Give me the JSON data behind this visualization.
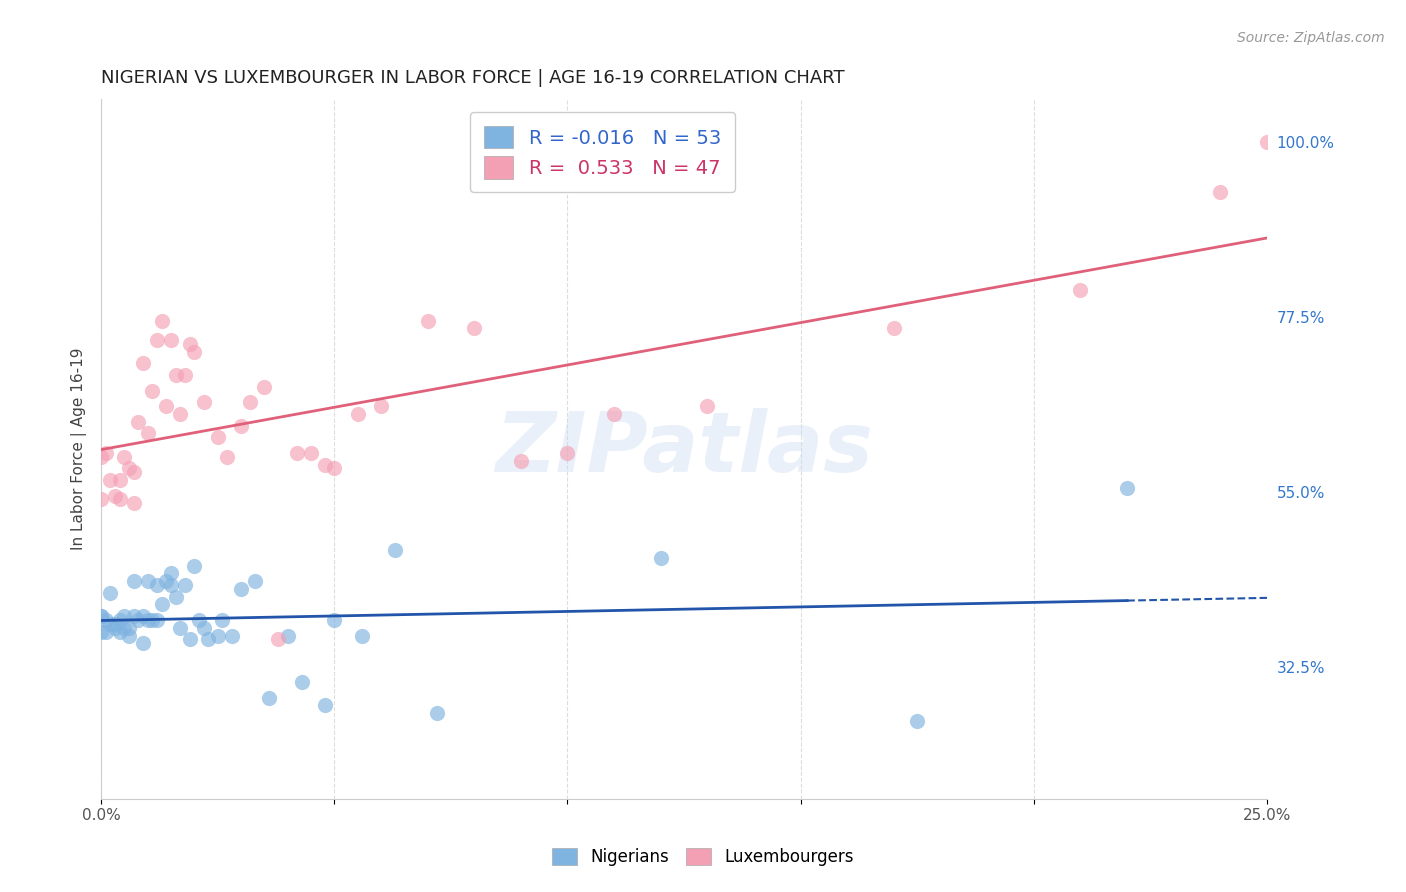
{
  "title": "NIGERIAN VS LUXEMBOURGER IN LABOR FORCE | AGE 16-19 CORRELATION CHART",
  "source_text": "Source: ZipAtlas.com",
  "ylabel": "In Labor Force | Age 16-19",
  "xlim": [
    0.0,
    0.25
  ],
  "ylim": [
    0.155,
    1.055
  ],
  "x_ticks": [
    0.0,
    0.05,
    0.1,
    0.15,
    0.2,
    0.25
  ],
  "x_tick_labels": [
    "0.0%",
    "",
    "",
    "",
    "",
    "25.0%"
  ],
  "y_ticks_right": [
    0.325,
    0.55,
    0.775,
    1.0
  ],
  "y_tick_labels_right": [
    "32.5%",
    "55.0%",
    "77.5%",
    "100.0%"
  ],
  "nigerian_color": "#7fb3e0",
  "luxembourger_color": "#f4a0b4",
  "nigerian_line_color": "#2255aa",
  "luxembourger_line_color": "#e0607a",
  "background_color": "#ffffff",
  "grid_color": "#dddddd",
  "watermark": "ZIPatlas",
  "nigerian_R": -0.016,
  "nigerian_N": 53,
  "luxembourger_R": 0.533,
  "luxembourger_N": 47,
  "nigerians_x": [
    0.0,
    0.0,
    0.0,
    0.001,
    0.001,
    0.002,
    0.002,
    0.003,
    0.003,
    0.004,
    0.004,
    0.005,
    0.005,
    0.006,
    0.006,
    0.007,
    0.007,
    0.008,
    0.009,
    0.009,
    0.01,
    0.01,
    0.011,
    0.012,
    0.012,
    0.013,
    0.014,
    0.015,
    0.015,
    0.016,
    0.017,
    0.018,
    0.019,
    0.02,
    0.021,
    0.022,
    0.023,
    0.025,
    0.026,
    0.028,
    0.03,
    0.033,
    0.036,
    0.04,
    0.043,
    0.048,
    0.05,
    0.056,
    0.063,
    0.072,
    0.12,
    0.175,
    0.22
  ],
  "nigerians_y": [
    0.39,
    0.39,
    0.37,
    0.385,
    0.37,
    0.42,
    0.38,
    0.38,
    0.375,
    0.385,
    0.37,
    0.375,
    0.39,
    0.375,
    0.365,
    0.435,
    0.39,
    0.385,
    0.355,
    0.39,
    0.385,
    0.435,
    0.385,
    0.385,
    0.43,
    0.405,
    0.435,
    0.445,
    0.43,
    0.415,
    0.375,
    0.43,
    0.36,
    0.455,
    0.385,
    0.375,
    0.36,
    0.365,
    0.385,
    0.365,
    0.425,
    0.435,
    0.285,
    0.365,
    0.305,
    0.275,
    0.385,
    0.365,
    0.475,
    0.265,
    0.465,
    0.255,
    0.555
  ],
  "luxembourgers_x": [
    0.0,
    0.0,
    0.001,
    0.002,
    0.003,
    0.004,
    0.004,
    0.005,
    0.006,
    0.007,
    0.007,
    0.008,
    0.009,
    0.01,
    0.011,
    0.012,
    0.013,
    0.014,
    0.015,
    0.016,
    0.017,
    0.018,
    0.019,
    0.02,
    0.022,
    0.025,
    0.027,
    0.03,
    0.032,
    0.035,
    0.038,
    0.042,
    0.045,
    0.048,
    0.05,
    0.055,
    0.06,
    0.07,
    0.08,
    0.09,
    0.1,
    0.11,
    0.13,
    0.17,
    0.21,
    0.24,
    0.25
  ],
  "luxembourgers_y": [
    0.595,
    0.54,
    0.6,
    0.565,
    0.545,
    0.54,
    0.565,
    0.595,
    0.58,
    0.535,
    0.575,
    0.64,
    0.715,
    0.625,
    0.68,
    0.745,
    0.77,
    0.66,
    0.745,
    0.7,
    0.65,
    0.7,
    0.74,
    0.73,
    0.665,
    0.62,
    0.595,
    0.635,
    0.665,
    0.685,
    0.36,
    0.6,
    0.6,
    0.585,
    0.58,
    0.65,
    0.66,
    0.77,
    0.76,
    0.59,
    0.6,
    0.65,
    0.66,
    0.76,
    0.81,
    0.935,
    1.0
  ]
}
